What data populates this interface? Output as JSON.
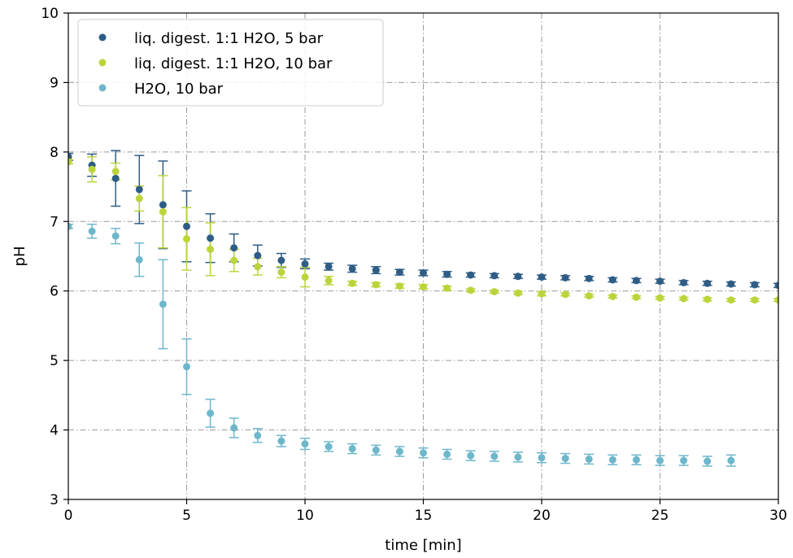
{
  "chart_data": {
    "type": "scatter",
    "title": "",
    "xlabel": "time [min]",
    "ylabel": "pH",
    "xlim": [
      0,
      30
    ],
    "ylim": [
      3,
      10
    ],
    "xticks": [
      "0",
      "5",
      "10",
      "15",
      "20",
      "25",
      "30"
    ],
    "yticks": [
      "3",
      "4",
      "5",
      "6",
      "7",
      "8",
      "9",
      "10"
    ],
    "grid": true,
    "legend_position": "top-left",
    "series": [
      {
        "name": "liq. digest. 1:1 H2O, 5 bar",
        "color": "#2f5d86",
        "x": [
          0,
          1,
          2,
          3,
          4,
          5,
          6,
          7,
          8,
          9,
          10,
          11,
          12,
          13,
          14,
          15,
          16,
          17,
          18,
          19,
          20,
          21,
          22,
          23,
          24,
          25,
          26,
          27,
          28,
          29,
          30
        ],
        "y": [
          7.93,
          7.81,
          7.62,
          7.46,
          7.24,
          6.93,
          6.76,
          6.62,
          6.51,
          6.44,
          6.39,
          6.35,
          6.32,
          6.3,
          6.27,
          6.26,
          6.24,
          6.23,
          6.22,
          6.21,
          6.2,
          6.19,
          6.18,
          6.16,
          6.15,
          6.14,
          6.12,
          6.11,
          6.1,
          6.09,
          6.08
        ],
        "err": [
          0.05,
          0.16,
          0.4,
          0.49,
          0.63,
          0.51,
          0.35,
          0.2,
          0.15,
          0.1,
          0.07,
          0.05,
          0.05,
          0.05,
          0.04,
          0.04,
          0.04,
          0.03,
          0.03,
          0.03,
          0.03,
          0.03,
          0.03,
          0.03,
          0.03,
          0.03,
          0.03,
          0.03,
          0.03,
          0.03,
          0.03
        ]
      },
      {
        "name": "liq. digest. 1:1 H2O, 10 bar",
        "color": "#bcd43c",
        "x": [
          0,
          1,
          2,
          3,
          4,
          5,
          6,
          7,
          8,
          9,
          10,
          11,
          12,
          13,
          14,
          15,
          16,
          17,
          18,
          19,
          20,
          21,
          22,
          23,
          24,
          25,
          26,
          27,
          28,
          29,
          30
        ],
        "y": [
          7.86,
          7.75,
          7.72,
          7.33,
          7.14,
          6.75,
          6.6,
          6.44,
          6.35,
          6.27,
          6.2,
          6.15,
          6.11,
          6.09,
          6.07,
          6.06,
          6.04,
          6.01,
          5.99,
          5.97,
          5.96,
          5.95,
          5.93,
          5.92,
          5.91,
          5.9,
          5.89,
          5.88,
          5.87,
          5.87,
          5.87
        ],
        "err": [
          0.03,
          0.18,
          0.12,
          0.18,
          0.52,
          0.45,
          0.38,
          0.16,
          0.12,
          0.08,
          0.14,
          0.06,
          0.03,
          0.03,
          0.03,
          0.03,
          0.03,
          0.02,
          0.02,
          0.02,
          0.03,
          0.02,
          0.02,
          0.02,
          0.02,
          0.02,
          0.02,
          0.02,
          0.02,
          0.02,
          0.02
        ]
      },
      {
        "name": "H2O, 10 bar",
        "color": "#6eb7cb",
        "x": [
          0,
          1,
          2,
          3,
          4,
          5,
          6,
          7,
          8,
          9,
          10,
          11,
          12,
          13,
          14,
          15,
          16,
          17,
          18,
          19,
          20,
          21,
          22,
          23,
          24,
          25,
          26,
          27,
          28
        ],
        "y": [
          6.93,
          6.86,
          6.79,
          6.45,
          5.81,
          4.91,
          4.24,
          4.03,
          3.92,
          3.84,
          3.8,
          3.76,
          3.73,
          3.71,
          3.69,
          3.67,
          3.65,
          3.63,
          3.62,
          3.61,
          3.6,
          3.59,
          3.58,
          3.57,
          3.57,
          3.56,
          3.56,
          3.55,
          3.56
        ],
        "err": [
          0.03,
          0.1,
          0.11,
          0.24,
          0.64,
          0.4,
          0.2,
          0.14,
          0.1,
          0.08,
          0.08,
          0.07,
          0.07,
          0.07,
          0.07,
          0.07,
          0.07,
          0.07,
          0.07,
          0.07,
          0.07,
          0.07,
          0.07,
          0.07,
          0.07,
          0.07,
          0.07,
          0.07,
          0.08
        ]
      }
    ]
  }
}
